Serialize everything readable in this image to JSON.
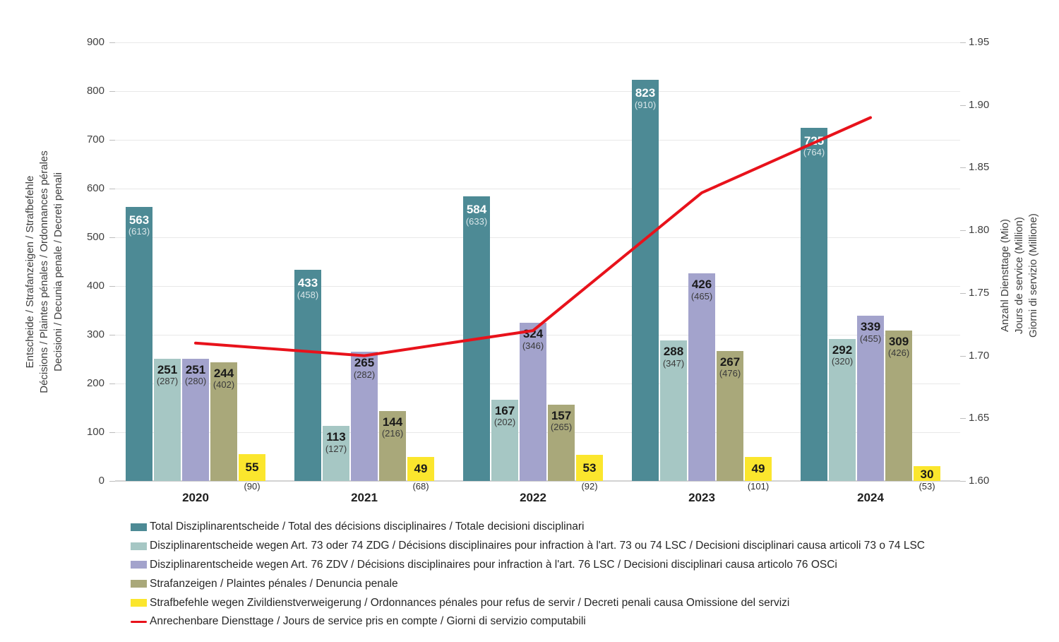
{
  "chart_data": {
    "type": "bar+line",
    "categories": [
      "2020",
      "2021",
      "2022",
      "2023",
      "2024"
    ],
    "series": [
      {
        "name": "Total Disziplinarentscheide / Total des décisions disciplinaires / Totale decisioni disciplinari",
        "color": "#4d8a95",
        "label_color": "#ffffff",
        "sub_label_color": "rgba(255,255,255,0.78)",
        "values": [
          563,
          433,
          584,
          823,
          725
        ],
        "secondary_values": [
          613,
          458,
          633,
          910,
          764
        ]
      },
      {
        "name": "Disziplinarentscheide wegen Art. 73 oder 74 ZDG / Décisions disciplinaires pour infraction à l'art. 73 ou 74 LSC / Decisioni disciplinari causa articoli 73 o 74 LSC",
        "color": "#a6c7c4",
        "label_color": "#1a1a1a",
        "sub_label_color": "#3a3a3a",
        "values": [
          251,
          113,
          167,
          288,
          292
        ],
        "secondary_values": [
          287,
          127,
          202,
          347,
          320
        ]
      },
      {
        "name": "Disziplinarentscheide wegen Art. 76 ZDV / Décisions disciplinaires pour infraction à l'art. 76 LSC / Decisioni disciplinari causa articolo 76 OSCi",
        "color": "#a3a3cc",
        "label_color": "#1a1a1a",
        "sub_label_color": "#3a3a3a",
        "values": [
          251,
          265,
          324,
          426,
          339
        ],
        "secondary_values": [
          280,
          282,
          346,
          465,
          455
        ]
      },
      {
        "name": "Strafanzeigen / Plaintes pénales / Denuncia penale",
        "color": "#a9a87a",
        "label_color": "#1a1a1a",
        "sub_label_color": "#3a3a3a",
        "values": [
          244,
          144,
          157,
          267,
          309
        ],
        "secondary_values": [
          402,
          216,
          265,
          476,
          426
        ]
      },
      {
        "name": "Strafbefehle wegen Zivildienstverweigerung / Ordonnances pénales pour refus de servir / Decreti penali causa Omissione del servizi",
        "color": "#fbe62d",
        "label_color": "#1a1a1a",
        "sub_label_color": "#2e2e2e",
        "values": [
          55,
          49,
          53,
          49,
          30
        ],
        "secondary_values": [
          90,
          68,
          92,
          101,
          53
        ],
        "secondary_below_bar": true
      }
    ],
    "line_series": {
      "name": "Anrechenbare Diensttage / Jours de service pris en compte / Giorni di servizio computabili",
      "color": "#e8121b",
      "values": [
        1.71,
        1.7,
        1.72,
        1.83,
        1.89
      ]
    },
    "left_axis": {
      "ticks": [
        0,
        100,
        200,
        300,
        400,
        500,
        600,
        700,
        800,
        900
      ],
      "min": 0,
      "max": 900,
      "title_lines": [
        "Entscheide / Strafanzeigen / Strafbefehle",
        "Décisions / Plaintes pénales / Ordonnances pérales",
        "Decisioni / Decunia penale / Decreti penali"
      ]
    },
    "right_axis": {
      "ticks": [
        "1.60",
        "1.65",
        "1.70",
        "1.75",
        "1.80",
        "1.85",
        "1.90",
        "1.95"
      ],
      "min": 1.6,
      "max": 1.95,
      "title_lines": [
        "Anzahl Diensttage (Mio)",
        "Jours de service (Million)",
        "Giorni di servizio (Millione)"
      ]
    },
    "grid": "horizontal",
    "legend_position": "bottom-left"
  }
}
